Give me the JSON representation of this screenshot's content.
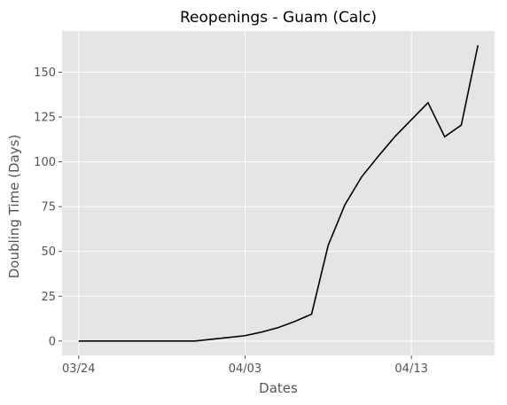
{
  "chart_data": {
    "type": "line",
    "title": "Reopenings - Guam (Calc)",
    "xlabel": "Dates",
    "ylabel": "Doubling Time (Days)",
    "x_ticks": [
      {
        "label": "03/24",
        "day": 0
      },
      {
        "label": "04/03",
        "day": 10
      },
      {
        "label": "04/13",
        "day": 20
      }
    ],
    "y_ticks": [
      0,
      25,
      50,
      75,
      100,
      125,
      150
    ],
    "xlim": [
      -1,
      25
    ],
    "ylim": [
      -8,
      173
    ],
    "grid": true,
    "background": "#e5e5e5",
    "grid_color": "#ffffff",
    "line_color": "#000000",
    "series": [
      {
        "x": [
          0,
          1,
          2,
          3,
          4,
          5,
          6,
          7,
          8,
          9,
          10,
          11,
          12,
          13,
          14,
          15,
          16,
          17,
          18,
          19,
          20,
          21,
          22,
          23,
          24
        ],
        "values": [
          0,
          0,
          0,
          0,
          0,
          0,
          0,
          0,
          1,
          2,
          3,
          5,
          7.5,
          11,
          15,
          53.5,
          76,
          91.5,
          103,
          114,
          123.5,
          133,
          114,
          120.5,
          165
        ]
      }
    ]
  }
}
